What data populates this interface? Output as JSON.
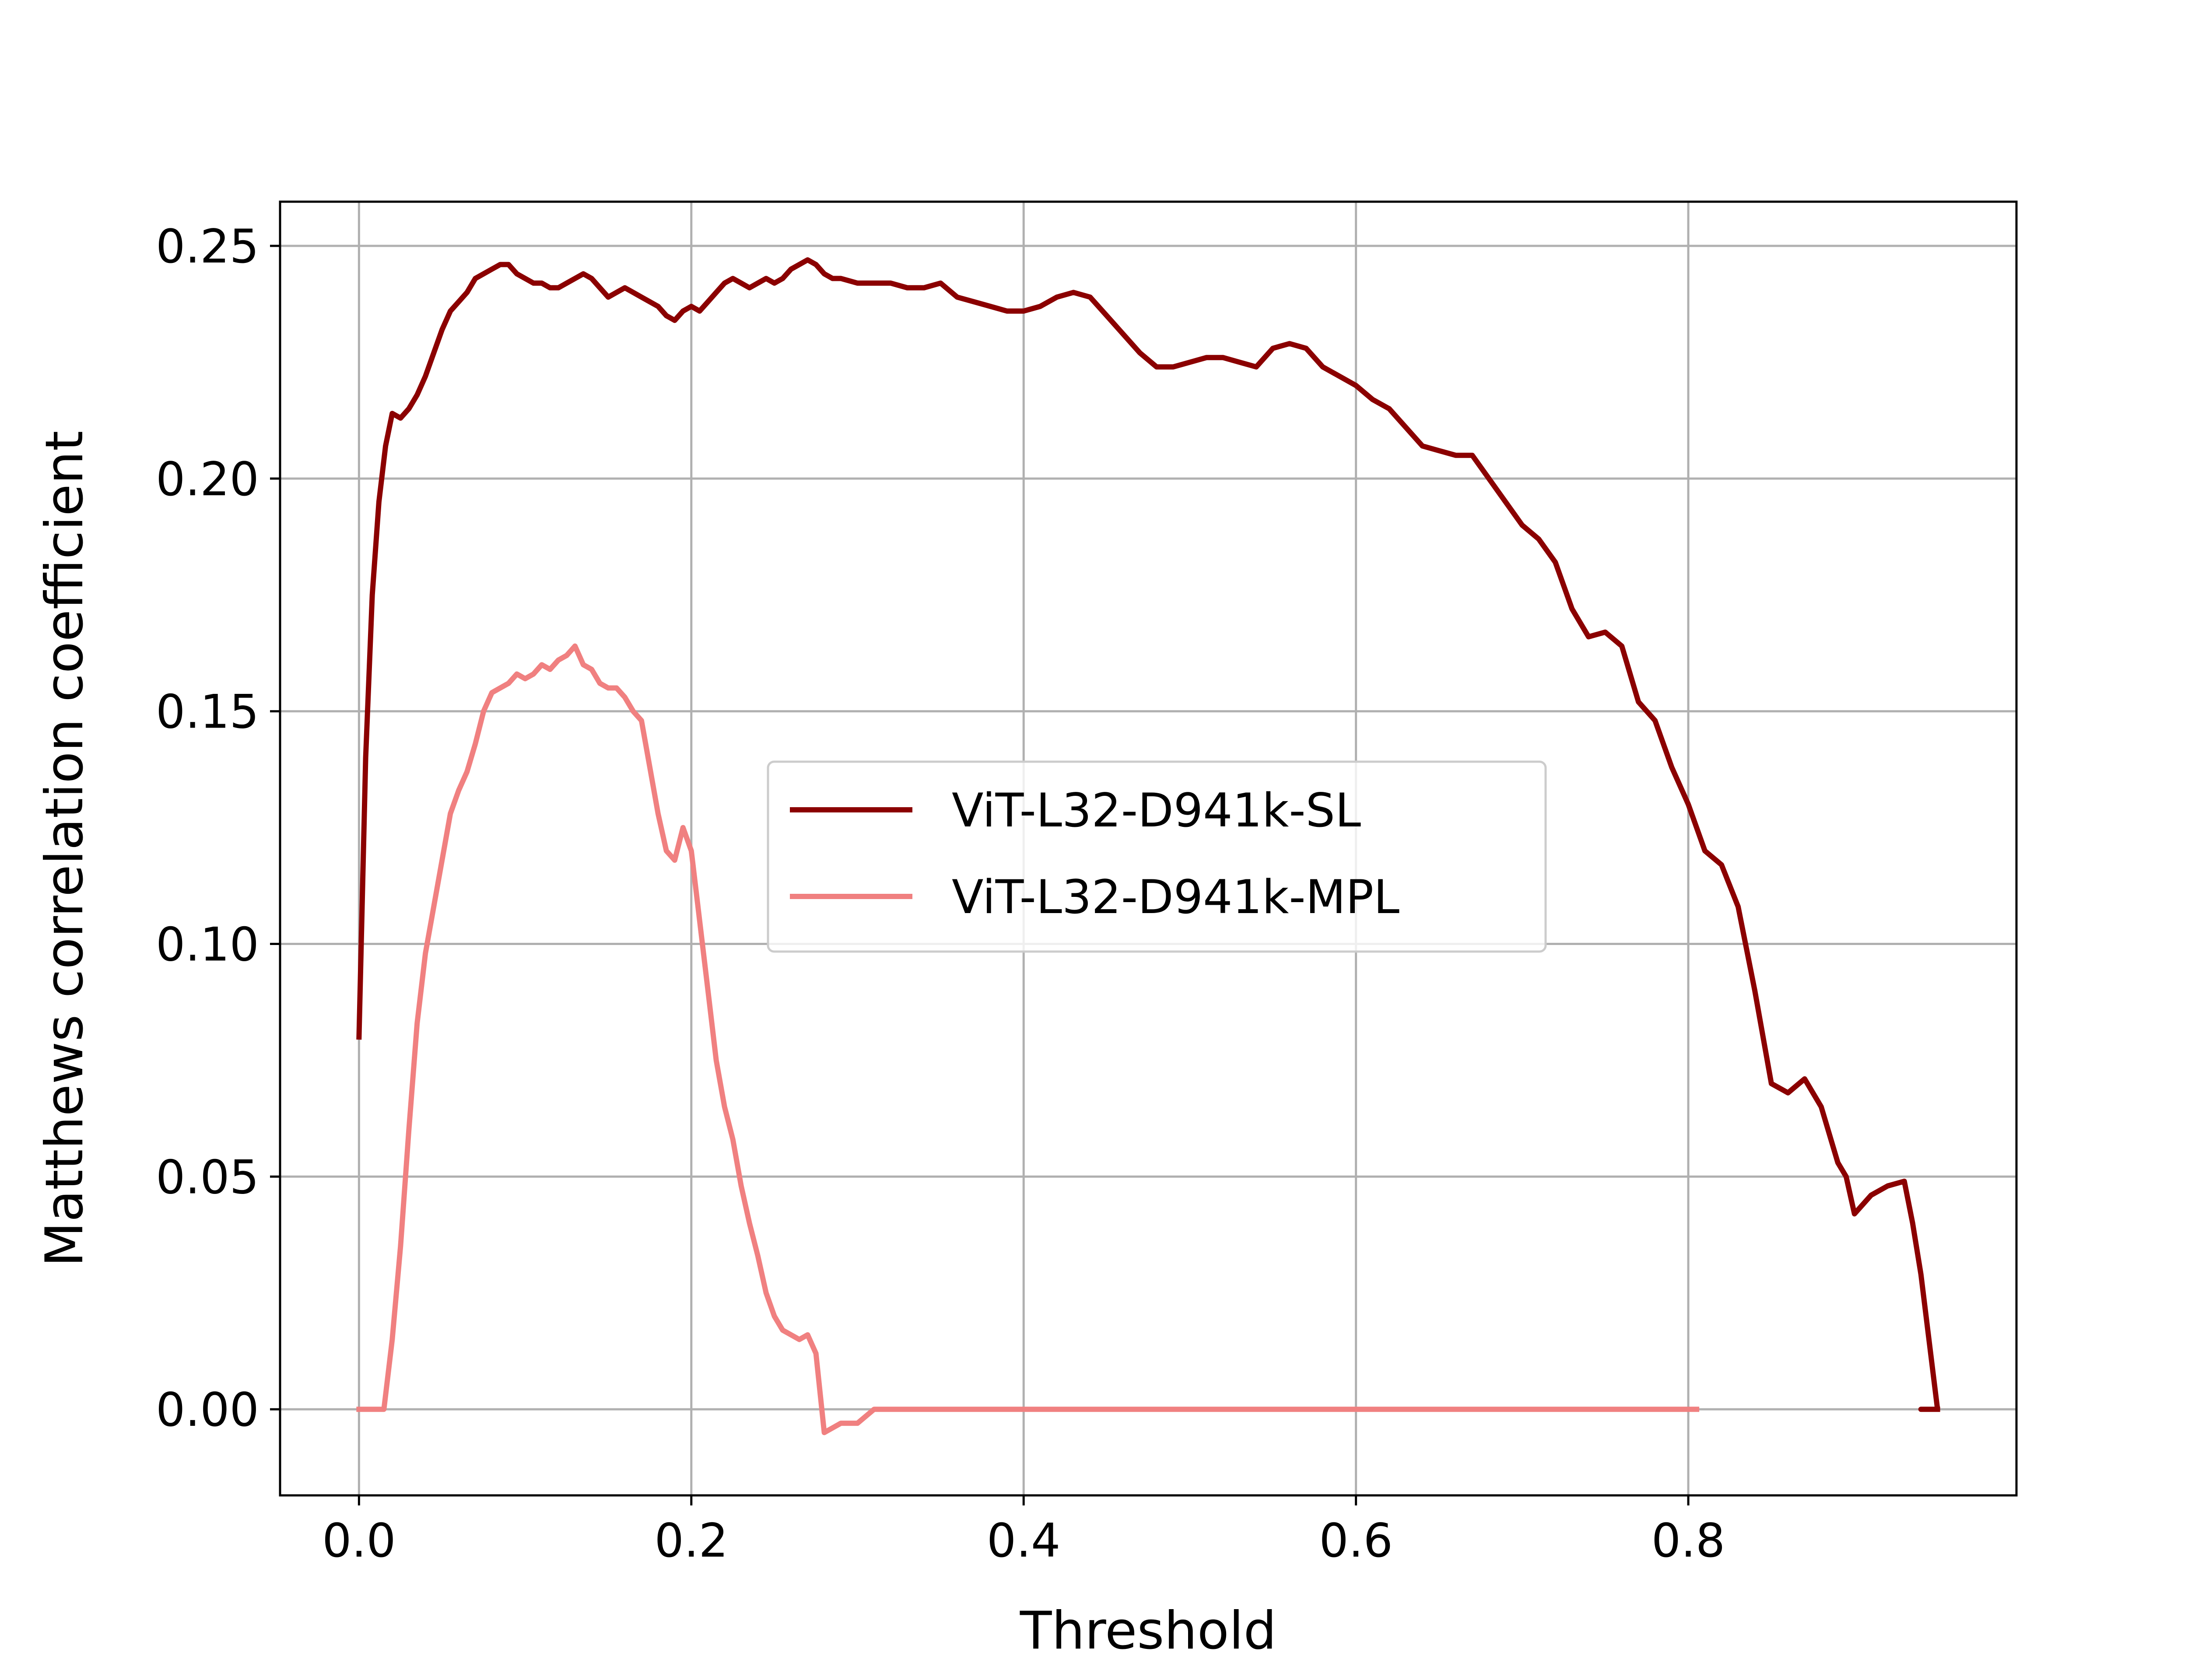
{
  "chart_data": {
    "type": "line",
    "title": "",
    "xlabel": "Threshold",
    "ylabel": "Matthews correlation coefficient",
    "xlim": [
      -0.0475,
      0.9975
    ],
    "ylim": [
      -0.0185,
      0.2595
    ],
    "xticks": [
      0.0,
      0.2,
      0.4,
      0.6,
      0.8
    ],
    "xtick_labels": [
      "0.0",
      "0.2",
      "0.4",
      "0.6",
      "0.8"
    ],
    "yticks": [
      0.0,
      0.05,
      0.1,
      0.15,
      0.2,
      0.25
    ],
    "ytick_labels": [
      "0.00",
      "0.05",
      "0.10",
      "0.15",
      "0.20",
      "0.25"
    ],
    "grid": true,
    "legend_position": "center",
    "series": [
      {
        "name": "ViT-L32-D941k-SL",
        "color": "#8b0000",
        "x": [
          0.0,
          0.004,
          0.008,
          0.012,
          0.016,
          0.02,
          0.025,
          0.03,
          0.035,
          0.04,
          0.045,
          0.05,
          0.055,
          0.06,
          0.065,
          0.07,
          0.075,
          0.08,
          0.085,
          0.09,
          0.095,
          0.1,
          0.105,
          0.11,
          0.115,
          0.12,
          0.125,
          0.13,
          0.135,
          0.14,
          0.145,
          0.15,
          0.155,
          0.16,
          0.165,
          0.17,
          0.175,
          0.18,
          0.185,
          0.19,
          0.195,
          0.2,
          0.205,
          0.21,
          0.215,
          0.22,
          0.225,
          0.23,
          0.235,
          0.24,
          0.245,
          0.25,
          0.255,
          0.26,
          0.265,
          0.27,
          0.275,
          0.28,
          0.285,
          0.29,
          0.3,
          0.31,
          0.32,
          0.33,
          0.34,
          0.35,
          0.36,
          0.37,
          0.38,
          0.39,
          0.4,
          0.41,
          0.42,
          0.43,
          0.44,
          0.45,
          0.46,
          0.47,
          0.48,
          0.49,
          0.5,
          0.51,
          0.52,
          0.53,
          0.54,
          0.55,
          0.56,
          0.57,
          0.58,
          0.59,
          0.6,
          0.61,
          0.62,
          0.63,
          0.64,
          0.65,
          0.66,
          0.67,
          0.68,
          0.69,
          0.7,
          0.71,
          0.72,
          0.73,
          0.74,
          0.75,
          0.76,
          0.77,
          0.78,
          0.79,
          0.8,
          0.81,
          0.82,
          0.83,
          0.84,
          0.85,
          0.86,
          0.87,
          0.88,
          0.89,
          0.895,
          0.9,
          0.91,
          0.92,
          0.93,
          0.935,
          0.94,
          0.95
        ],
        "values": [
          0.08,
          0.14,
          0.175,
          0.195,
          0.207,
          0.214,
          0.213,
          0.215,
          0.218,
          0.222,
          0.227,
          0.232,
          0.236,
          0.238,
          0.24,
          0.243,
          0.244,
          0.245,
          0.246,
          0.246,
          0.244,
          0.243,
          0.242,
          0.242,
          0.241,
          0.241,
          0.242,
          0.243,
          0.244,
          0.243,
          0.241,
          0.239,
          0.24,
          0.241,
          0.24,
          0.239,
          0.238,
          0.237,
          0.235,
          0.234,
          0.236,
          0.237,
          0.236,
          0.238,
          0.24,
          0.242,
          0.243,
          0.242,
          0.241,
          0.242,
          0.243,
          0.242,
          0.243,
          0.245,
          0.246,
          0.247,
          0.246,
          0.244,
          0.243,
          0.243,
          0.242,
          0.242,
          0.242,
          0.241,
          0.241,
          0.242,
          0.239,
          0.238,
          0.237,
          0.236,
          0.236,
          0.237,
          0.239,
          0.24,
          0.239,
          0.235,
          0.231,
          0.227,
          0.224,
          0.224,
          0.225,
          0.226,
          0.226,
          0.225,
          0.224,
          0.228,
          0.229,
          0.228,
          0.224,
          0.222,
          0.22,
          0.217,
          0.215,
          0.211,
          0.207,
          0.206,
          0.205,
          0.205,
          0.2,
          0.195,
          0.19,
          0.187,
          0.182,
          0.172,
          0.166,
          0.167,
          0.164,
          0.152,
          0.148,
          0.138,
          0.13,
          0.12,
          0.117,
          0.108,
          0.09,
          0.07,
          0.068,
          0.071,
          0.065,
          0.053,
          0.05,
          0.042,
          0.046,
          0.048,
          0.049,
          0.04,
          0.029,
          0.0
        ],
        "tail": [
          [
            0.94,
            0.0
          ],
          [
            0.95,
            0.0
          ]
        ]
      },
      {
        "name": "ViT-L32-D941k-MPL",
        "color": "#f08080",
        "x": [
          0.0,
          0.005,
          0.01,
          0.015,
          0.02,
          0.025,
          0.03,
          0.035,
          0.04,
          0.045,
          0.05,
          0.055,
          0.06,
          0.065,
          0.07,
          0.075,
          0.08,
          0.085,
          0.09,
          0.095,
          0.1,
          0.105,
          0.11,
          0.115,
          0.12,
          0.125,
          0.13,
          0.135,
          0.14,
          0.145,
          0.15,
          0.155,
          0.16,
          0.165,
          0.17,
          0.175,
          0.18,
          0.185,
          0.19,
          0.195,
          0.2,
          0.205,
          0.21,
          0.215,
          0.22,
          0.225,
          0.23,
          0.235,
          0.24,
          0.245,
          0.25,
          0.255,
          0.26,
          0.265,
          0.27,
          0.275,
          0.28,
          0.285,
          0.29,
          0.3,
          0.31,
          0.32,
          0.4,
          0.5,
          0.6,
          0.7,
          0.8,
          0.805
        ],
        "values": [
          0.0,
          0.0,
          0.0,
          0.0,
          0.015,
          0.035,
          0.06,
          0.083,
          0.098,
          0.108,
          0.118,
          0.128,
          0.133,
          0.137,
          0.143,
          0.15,
          0.154,
          0.155,
          0.156,
          0.158,
          0.157,
          0.158,
          0.16,
          0.159,
          0.161,
          0.162,
          0.164,
          0.16,
          0.159,
          0.156,
          0.155,
          0.155,
          0.153,
          0.15,
          0.148,
          0.138,
          0.128,
          0.12,
          0.118,
          0.125,
          0.12,
          0.105,
          0.09,
          0.075,
          0.065,
          0.058,
          0.048,
          0.04,
          0.033,
          0.025,
          0.02,
          0.017,
          0.016,
          0.015,
          0.016,
          0.012,
          -0.005,
          -0.004,
          -0.003,
          -0.003,
          0.0,
          0.0,
          0.0,
          0.0,
          0.0,
          0.0,
          0.0,
          0.0
        ]
      }
    ]
  }
}
